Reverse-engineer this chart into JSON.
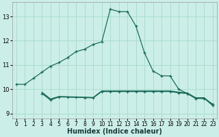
{
  "xlabel": "Humidex (Indice chaleur)",
  "background_color": "#cceee8",
  "grid_color": "#aaddcc",
  "line_color": "#1a6b5a",
  "xlim": [
    -0.5,
    23.5
  ],
  "ylim": [
    8.8,
    13.6
  ],
  "yticks": [
    9,
    10,
    11,
    12,
    13
  ],
  "xticks": [
    0,
    1,
    2,
    3,
    4,
    5,
    6,
    7,
    8,
    9,
    10,
    11,
    12,
    13,
    14,
    15,
    16,
    17,
    18,
    19,
    20,
    21,
    22,
    23
  ],
  "s1_x": [
    0,
    1,
    2,
    3,
    4,
    5,
    6,
    7,
    8,
    9,
    10,
    11,
    12,
    13,
    14,
    15,
    16,
    17,
    18,
    19,
    20,
    21,
    22,
    23
  ],
  "s1_y": [
    10.2,
    10.2,
    10.45,
    10.7,
    10.95,
    11.1,
    11.3,
    11.55,
    11.65,
    11.85,
    11.95,
    13.3,
    13.2,
    13.2,
    12.6,
    11.5,
    10.75,
    10.55,
    10.55,
    10.0,
    9.82,
    9.62,
    9.62,
    9.38
  ],
  "s2_x": [
    3,
    4,
    5,
    6,
    7,
    8,
    9,
    10,
    11,
    12,
    13,
    14,
    15,
    16,
    17,
    18,
    19,
    20,
    21,
    22,
    23
  ],
  "s2_y": [
    9.82,
    9.55,
    9.68,
    9.67,
    9.66,
    9.65,
    9.64,
    9.9,
    9.9,
    9.9,
    9.9,
    9.9,
    9.9,
    9.9,
    9.9,
    9.9,
    9.85,
    9.82,
    9.62,
    9.62,
    9.32
  ],
  "s3_x": [
    3,
    4,
    5,
    6,
    7,
    8,
    9,
    10,
    11,
    12,
    13,
    14,
    15,
    16,
    17,
    18,
    19,
    20,
    21,
    22,
    23
  ],
  "s3_y": [
    9.88,
    9.6,
    9.7,
    9.69,
    9.68,
    9.67,
    9.66,
    9.93,
    9.93,
    9.93,
    9.93,
    9.93,
    9.93,
    9.93,
    9.93,
    9.93,
    9.88,
    9.85,
    9.65,
    9.65,
    9.35
  ],
  "s4_x": [
    3,
    4,
    5,
    6,
    7,
    8,
    9,
    10,
    11,
    12,
    13,
    14,
    15,
    16,
    17,
    18,
    19,
    20,
    21,
    22,
    23
  ],
  "s4_y": [
    9.85,
    9.57,
    9.69,
    9.68,
    9.67,
    9.66,
    9.65,
    9.91,
    9.91,
    9.91,
    9.91,
    9.91,
    9.91,
    9.91,
    9.91,
    9.91,
    9.86,
    9.83,
    9.63,
    9.63,
    9.33
  ]
}
